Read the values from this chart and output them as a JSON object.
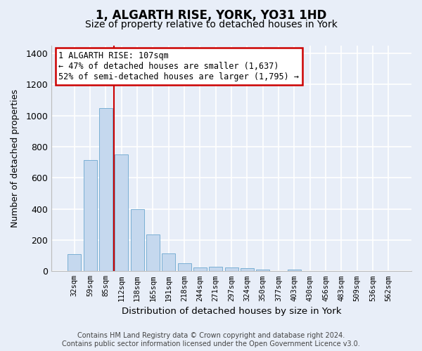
{
  "title": "1, ALGARTH RISE, YORK, YO31 1HD",
  "subtitle": "Size of property relative to detached houses in York",
  "xlabel": "Distribution of detached houses by size in York",
  "ylabel": "Number of detached properties",
  "footer_line1": "Contains HM Land Registry data © Crown copyright and database right 2024.",
  "footer_line2": "Contains public sector information licensed under the Open Government Licence v3.0.",
  "categories": [
    "32sqm",
    "59sqm",
    "85sqm",
    "112sqm",
    "138sqm",
    "165sqm",
    "191sqm",
    "218sqm",
    "244sqm",
    "271sqm",
    "297sqm",
    "324sqm",
    "350sqm",
    "377sqm",
    "403sqm",
    "430sqm",
    "456sqm",
    "483sqm",
    "509sqm",
    "536sqm",
    "562sqm"
  ],
  "values": [
    110,
    715,
    1050,
    750,
    400,
    238,
    115,
    50,
    22,
    28,
    22,
    18,
    10,
    0,
    12,
    0,
    0,
    0,
    0,
    0,
    0
  ],
  "bar_color": "#c5d8ee",
  "bar_edge_color": "#7aafd4",
  "vline_x": 2.5,
  "vline_color": "#cc0000",
  "ylim": [
    0,
    1450
  ],
  "yticks": [
    0,
    200,
    400,
    600,
    800,
    1000,
    1200,
    1400
  ],
  "annotation_text": "1 ALGARTH RISE: 107sqm\n← 47% of detached houses are smaller (1,637)\n52% of semi-detached houses are larger (1,795) →",
  "annotation_box_color": "#ffffff",
  "annotation_box_edge": "#cc0000",
  "background_color": "#e8eef8",
  "grid_color": "#ffffff",
  "title_fontsize": 12,
  "subtitle_fontsize": 10,
  "ann_fontsize": 8.5,
  "footer_fontsize": 7
}
